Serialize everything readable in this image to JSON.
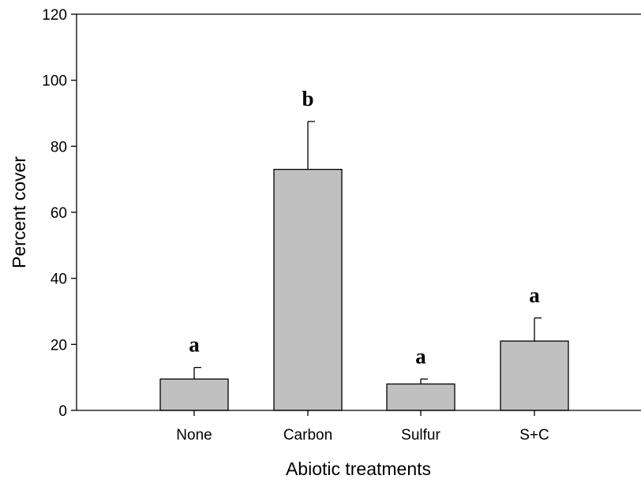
{
  "chart_data": {
    "type": "bar",
    "title": "",
    "xlabel": "Abiotic treatments",
    "ylabel": "Percent cover",
    "ylim": [
      0,
      120
    ],
    "yticks": [
      0,
      20,
      40,
      60,
      80,
      100,
      120
    ],
    "categories": [
      "None",
      "Carbon",
      "Sulfur",
      "S+C"
    ],
    "values": [
      9.5,
      73,
      8,
      21
    ],
    "errors": [
      3.5,
      14.5,
      1.5,
      7
    ],
    "significance_letters": [
      "a",
      "b",
      "a",
      "a"
    ],
    "grid": false,
    "bar_color": "#c0c0c0"
  }
}
